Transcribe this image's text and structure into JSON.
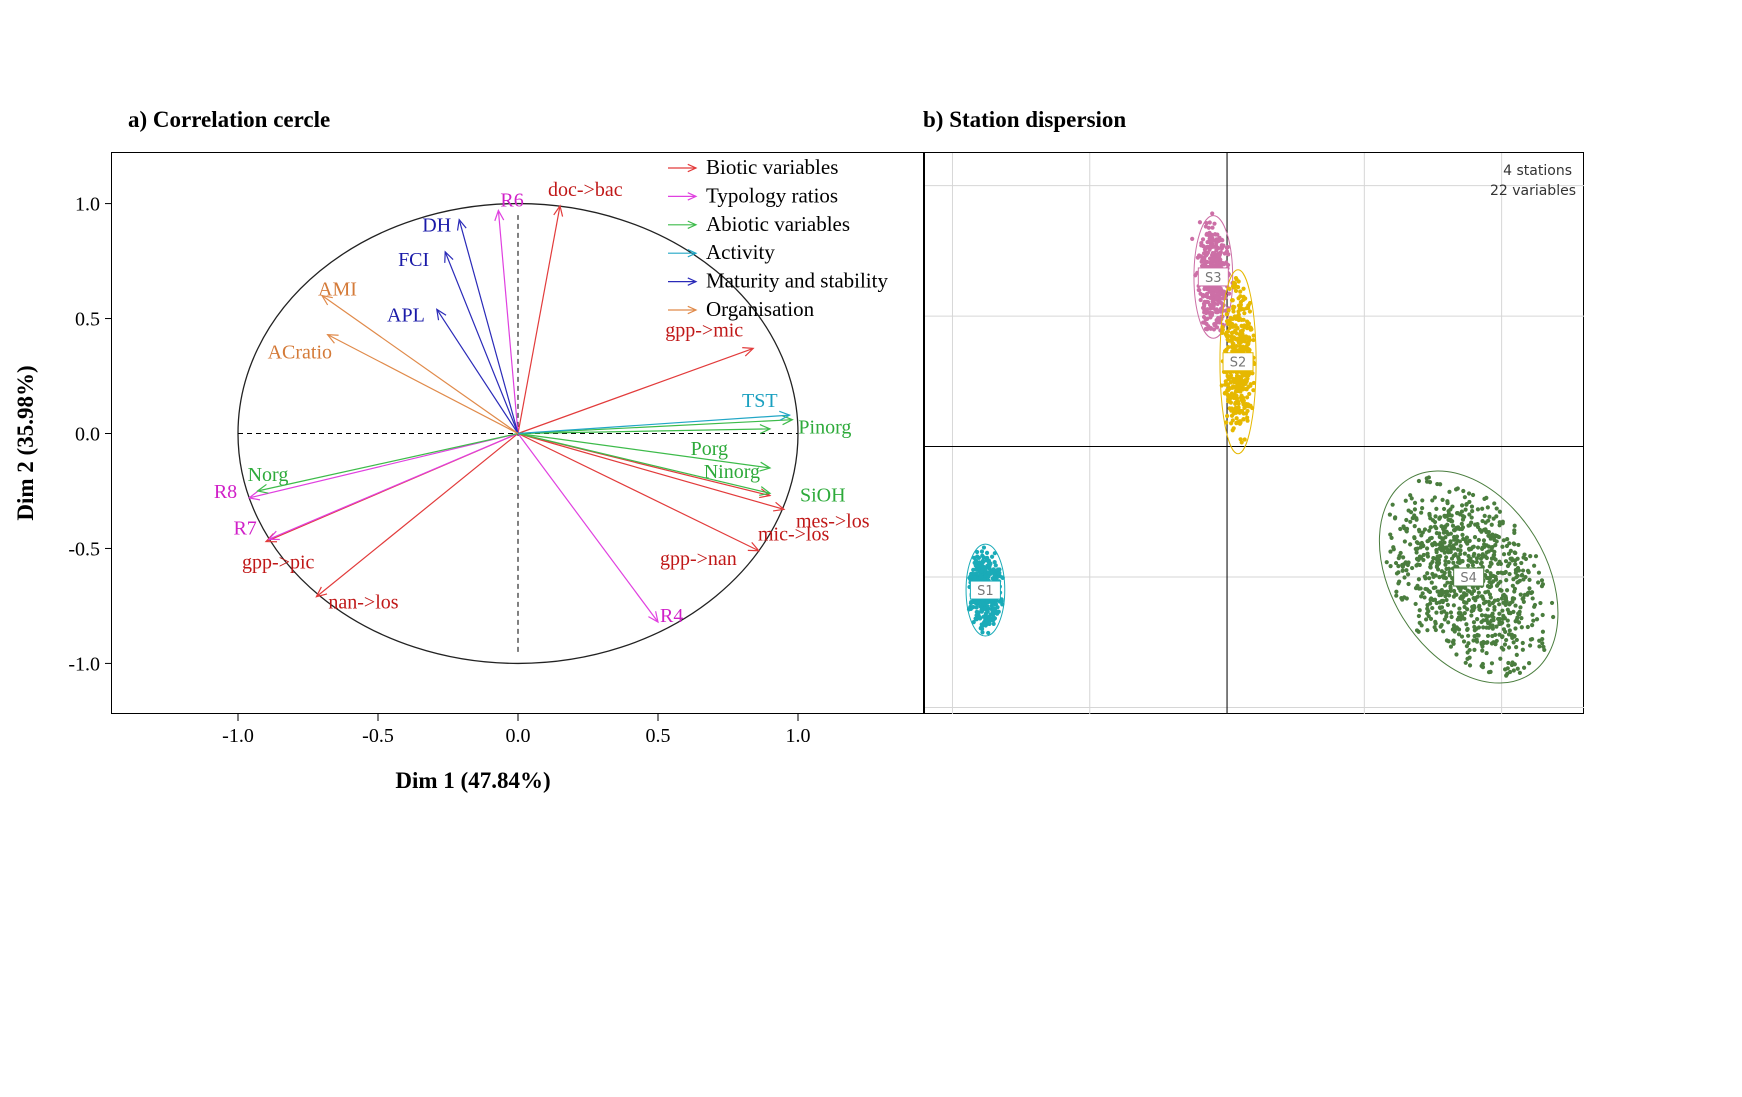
{
  "chart_data": [
    {
      "type": "scatter",
      "subtype": "pca-correlation-circle",
      "title": "a) Correlation cercle",
      "xlabel": "Dim 1 (47.84%)",
      "ylabel": "Dim 2 (35.98%)",
      "xlim": [
        -1.45,
        1.45
      ],
      "ylim": [
        -1.22,
        1.22
      ],
      "xticks": [
        "-1.0",
        "-0.5",
        "0.0",
        "0.5",
        "1.0"
      ],
      "yticks": [
        "-1.0",
        "-0.5",
        "0.0",
        "0.5",
        "1.0"
      ],
      "legend_position": "top-right",
      "legend": [
        {
          "label": "Biotic variables",
          "color": "#e23b3b"
        },
        {
          "label": "Typology ratios",
          "color": "#e040e0"
        },
        {
          "label": "Abiotic variables",
          "color": "#3dbb4a"
        },
        {
          "label": "Activity",
          "color": "#22a7c6"
        },
        {
          "label": "Maturity and stability",
          "color": "#2a2ab8"
        },
        {
          "label": "Organisation",
          "color": "#e08a4a"
        }
      ],
      "series": [
        {
          "name": "Biotic variables",
          "color": "#e23b3b",
          "label_color": "#c01818",
          "points": [
            {
              "label": "doc->bac",
              "x": 0.15,
              "y": 0.99
            },
            {
              "label": "gpp->mic",
              "x": 0.84,
              "y": 0.37
            },
            {
              "label": "mes->los",
              "x": 0.95,
              "y": -0.33
            },
            {
              "label": "mic->los",
              "x": 0.9,
              "y": -0.27
            },
            {
              "label": "gpp->nan",
              "x": 0.86,
              "y": -0.51
            },
            {
              "label": "gpp->pic",
              "x": -0.9,
              "y": -0.47
            },
            {
              "label": "nan->los",
              "x": -0.72,
              "y": -0.71
            }
          ]
        },
        {
          "name": "Typology ratios",
          "color": "#e040e0",
          "label_color": "#d020c8",
          "points": [
            {
              "label": "R6",
              "x": -0.07,
              "y": 0.97
            },
            {
              "label": "R8",
              "x": -0.96,
              "y": -0.28
            },
            {
              "label": "R7",
              "x": -0.89,
              "y": -0.46
            },
            {
              "label": "R4",
              "x": 0.5,
              "y": -0.82
            }
          ]
        },
        {
          "name": "Abiotic variables",
          "color": "#3dbb4a",
          "label_color": "#2daa3a",
          "points": [
            {
              "label": "Pinorg",
              "x": 0.98,
              "y": 0.06
            },
            {
              "label": "Porg",
              "x": 0.9,
              "y": 0.02
            },
            {
              "label": "Norg",
              "x": -0.93,
              "y": -0.25
            },
            {
              "label": "Ninorg",
              "x": 0.9,
              "y": -0.15
            },
            {
              "label": "SiOH",
              "x": 0.9,
              "y": -0.26
            }
          ]
        },
        {
          "name": "Activity",
          "color": "#22a7c6",
          "label_color": "#1aa0c0",
          "points": [
            {
              "label": "TST",
              "x": 0.97,
              "y": 0.08
            }
          ]
        },
        {
          "name": "Maturity and stability",
          "color": "#2a2ab8",
          "label_color": "#1a1aa8",
          "points": [
            {
              "label": "DH",
              "x": -0.21,
              "y": 0.93
            },
            {
              "label": "FCI",
              "x": -0.26,
              "y": 0.79
            },
            {
              "label": "APL",
              "x": -0.29,
              "y": 0.54
            }
          ]
        },
        {
          "name": "Organisation",
          "color": "#e08a4a",
          "label_color": "#d47a38",
          "points": [
            {
              "label": "AMI",
              "x": -0.7,
              "y": 0.6
            },
            {
              "label": "ACratio",
              "x": -0.68,
              "y": 0.43
            }
          ]
        }
      ]
    },
    {
      "type": "scatter",
      "subtype": "station-dispersion",
      "title": "b) Station dispersion",
      "annotation_lines": [
        "4 stations",
        "22 variables"
      ],
      "xlim": [
        -5.5,
        6.5
      ],
      "ylim": [
        -4.1,
        4.5
      ],
      "xticks": [
        -5,
        -2.5,
        0,
        2.5,
        5
      ],
      "yticks": [
        -4,
        -2,
        0,
        2,
        4
      ],
      "grid": true,
      "stations": [
        {
          "label": "S3",
          "color": "#cc6fa6",
          "cx": -0.25,
          "cy": 2.6,
          "sx": 0.15,
          "sy": 0.4,
          "tilt": 0
        },
        {
          "label": "S2",
          "color": "#e6b800",
          "cx": 0.2,
          "cy": 1.3,
          "sx": 0.14,
          "sy": 0.6,
          "tilt": 0
        },
        {
          "label": "S1",
          "color": "#1aabb8",
          "cx": -4.4,
          "cy": -2.2,
          "sx": 0.15,
          "sy": 0.3,
          "tilt": 0
        },
        {
          "label": "S4",
          "color": "#4a7d3e",
          "cx": 4.4,
          "cy": -2.0,
          "sx": 0.6,
          "sy": 0.75,
          "tilt": -0.55
        }
      ]
    }
  ]
}
